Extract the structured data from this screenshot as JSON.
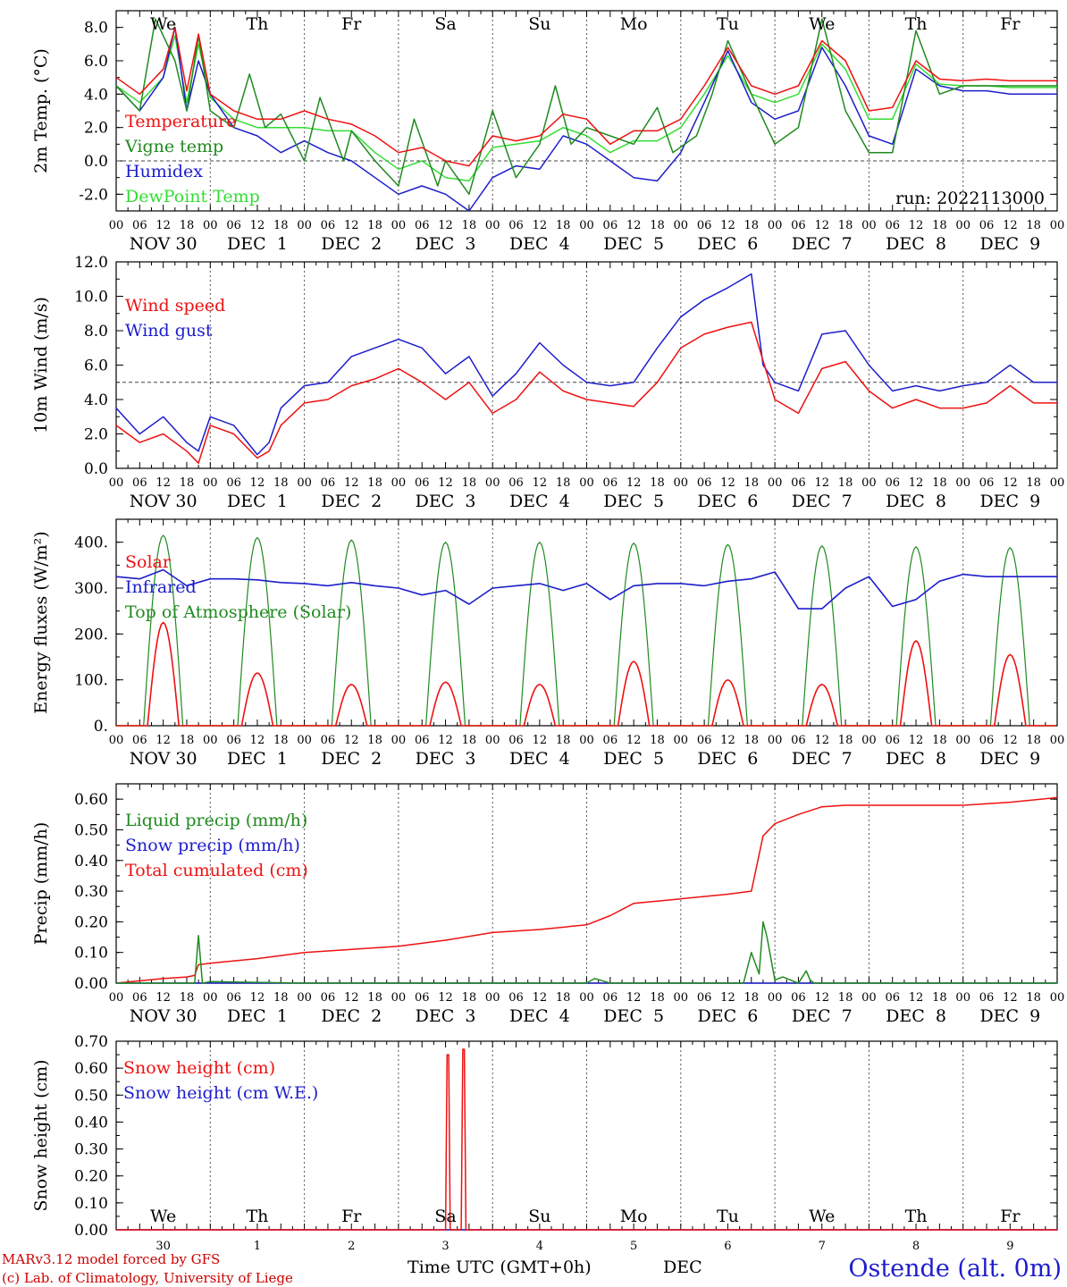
{
  "footer": {
    "model": "MARv3.12 model forced by GFS",
    "lab": "(c) Lab. of Climatology, University of Liege",
    "time_label": "Time UTC (GMT+0h)",
    "month_label": "DEC",
    "station": "Ostende (alt. 0m)"
  },
  "weekdays": [
    "We",
    "Th",
    "Fr",
    "Sa",
    "Su",
    "Mo",
    "Tu",
    "We",
    "Th",
    "Fr"
  ],
  "weekend_color": "#e00000",
  "weekend_index": [
    3,
    4
  ],
  "date_labels": [
    "NOV 30",
    "DEC  1",
    "DEC  2",
    "DEC  3",
    "DEC  4",
    "DEC  5",
    "DEC  6",
    "DEC  7",
    "DEC  8",
    "DEC  9"
  ],
  "day_numbers": [
    "30",
    "1",
    "2",
    "3",
    "4",
    "5",
    "6",
    "7",
    "8",
    "9"
  ],
  "hour_labels": [
    "00",
    "06",
    "12",
    "18"
  ],
  "colors": {
    "red": "#ee1111",
    "green": "#1f8a1f",
    "blue": "#1d1dcc",
    "lightgreen": "#33dd33"
  },
  "chart_data": [
    {
      "type": "line",
      "ylabel": "2m Temp. (°C)",
      "ylim": [
        -3.0,
        9.0
      ],
      "yticks": [
        "-2.0",
        "0.0",
        "2.0",
        "4.0",
        "6.0",
        "8.0"
      ],
      "hline": 0.0,
      "run_label": "run: 2022113000",
      "x_unit": "hours since NOV 30 00 UTC",
      "series": [
        {
          "name": "Temperature",
          "color": "red",
          "x": [
            0,
            6,
            12,
            15,
            18,
            21,
            24,
            30,
            36,
            42,
            48,
            54,
            60,
            66,
            72,
            78,
            84,
            90,
            96,
            102,
            108,
            114,
            120,
            126,
            132,
            138,
            144,
            150,
            156,
            162,
            168,
            174,
            180,
            186,
            192,
            198,
            204,
            210,
            216,
            222,
            228,
            234,
            240
          ],
          "y": [
            5.0,
            4.0,
            5.5,
            8.0,
            4.2,
            7.6,
            4.0,
            3.0,
            2.5,
            2.5,
            3.0,
            2.5,
            2.2,
            1.5,
            0.5,
            0.8,
            0.0,
            -0.3,
            1.5,
            1.2,
            1.5,
            2.8,
            2.5,
            1.0,
            1.8,
            1.8,
            2.5,
            4.5,
            6.8,
            4.5,
            4.0,
            4.5,
            7.2,
            6.0,
            3.0,
            3.2,
            6.0,
            4.9,
            4.8,
            4.9,
            4.8,
            4.8,
            4.8
          ]
        },
        {
          "name": "Vigne temp",
          "color": "green",
          "x": [
            0,
            6,
            10,
            15,
            18,
            21,
            24,
            30,
            34,
            38,
            42,
            48,
            52,
            58,
            60,
            66,
            72,
            76,
            82,
            84,
            90,
            96,
            102,
            108,
            112,
            116,
            120,
            126,
            132,
            138,
            142,
            148,
            152,
            156,
            162,
            168,
            174,
            180,
            186,
            192,
            198,
            204,
            210,
            216,
            222,
            228,
            234,
            240
          ],
          "y": [
            4.5,
            3.0,
            8.5,
            6.0,
            3.0,
            7.5,
            3.0,
            2.0,
            5.2,
            2.0,
            2.8,
            0.0,
            3.8,
            0.0,
            1.8,
            0.0,
            -1.5,
            2.5,
            -1.5,
            0.0,
            -2.0,
            3.0,
            -1.0,
            1.0,
            4.5,
            1.0,
            2.0,
            1.5,
            1.0,
            3.2,
            0.5,
            1.5,
            4.0,
            7.2,
            4.0,
            1.0,
            2.0,
            8.5,
            3.0,
            0.5,
            0.5,
            7.8,
            4.0,
            4.5,
            4.5,
            4.5,
            4.5,
            4.5
          ]
        },
        {
          "name": "Humidex",
          "color": "blue",
          "x": [
            0,
            6,
            12,
            15,
            18,
            21,
            24,
            30,
            36,
            42,
            48,
            54,
            60,
            66,
            72,
            78,
            84,
            90,
            96,
            102,
            108,
            114,
            120,
            126,
            132,
            138,
            144,
            150,
            156,
            162,
            168,
            174,
            180,
            186,
            192,
            198,
            204,
            210,
            216,
            222,
            228,
            234,
            240
          ],
          "y": [
            4.5,
            3.0,
            5.0,
            8.0,
            3.0,
            6.0,
            4.0,
            2.0,
            1.5,
            0.5,
            1.2,
            0.5,
            0.0,
            -1.0,
            -2.0,
            -1.5,
            -2.0,
            -3.0,
            -1.0,
            -0.3,
            -0.5,
            1.5,
            1.0,
            0.0,
            -1.0,
            -1.2,
            0.5,
            3.5,
            6.6,
            3.5,
            2.5,
            3.0,
            6.8,
            4.5,
            1.5,
            1.0,
            5.5,
            4.5,
            4.2,
            4.2,
            4.0,
            4.0,
            4.0
          ]
        },
        {
          "name": "DewPoint Temp",
          "color": "lightgreen",
          "x": [
            0,
            6,
            12,
            15,
            18,
            21,
            24,
            30,
            36,
            42,
            48,
            54,
            60,
            66,
            72,
            78,
            84,
            90,
            96,
            102,
            108,
            114,
            120,
            126,
            132,
            138,
            144,
            150,
            156,
            162,
            168,
            174,
            180,
            186,
            192,
            198,
            204,
            210,
            216,
            222,
            228,
            234,
            240
          ],
          "y": [
            4.5,
            3.5,
            5.0,
            7.5,
            3.5,
            7.0,
            3.8,
            2.5,
            2.0,
            2.0,
            2.0,
            1.8,
            1.8,
            0.5,
            -0.5,
            0.0,
            -1.0,
            -1.2,
            0.8,
            1.0,
            1.2,
            2.0,
            1.5,
            0.5,
            1.2,
            1.2,
            2.0,
            4.0,
            6.3,
            4.0,
            3.5,
            4.0,
            7.0,
            5.5,
            2.5,
            2.5,
            5.8,
            4.6,
            4.5,
            4.5,
            4.4,
            4.4,
            4.4
          ]
        }
      ],
      "legend": [
        "Temperature",
        "Vigne temp",
        "Humidex",
        "DewPoint Temp"
      ]
    },
    {
      "type": "line",
      "ylabel": "10m Wind (m/s)",
      "ylim": [
        0.0,
        12.0
      ],
      "yticks": [
        "0.0",
        "2.0",
        "4.0",
        "6.0",
        "8.0",
        "10.0",
        "12.0"
      ],
      "hline": 5.0,
      "series": [
        {
          "name": "Wind speed",
          "color": "red",
          "x": [
            0,
            6,
            12,
            18,
            21,
            24,
            30,
            36,
            39,
            42,
            48,
            54,
            60,
            66,
            72,
            78,
            84,
            90,
            96,
            102,
            108,
            114,
            120,
            126,
            132,
            138,
            144,
            150,
            156,
            162,
            168,
            174,
            180,
            186,
            192,
            198,
            204,
            210,
            216,
            222,
            228,
            234,
            240
          ],
          "y": [
            2.5,
            1.5,
            2.0,
            1.0,
            0.3,
            2.5,
            2.0,
            0.6,
            1.0,
            2.5,
            3.8,
            4.0,
            4.8,
            5.2,
            5.8,
            5.0,
            4.0,
            5.0,
            3.2,
            4.0,
            5.6,
            4.5,
            4.0,
            3.8,
            3.6,
            5.0,
            7.0,
            7.8,
            8.2,
            8.5,
            4.0,
            3.2,
            5.8,
            6.2,
            4.5,
            3.5,
            4.0,
            3.5,
            3.5,
            3.8,
            4.8,
            3.8,
            3.8
          ]
        },
        {
          "name": "Wind gust",
          "color": "blue",
          "x": [
            0,
            6,
            12,
            18,
            21,
            24,
            30,
            36,
            39,
            42,
            48,
            54,
            60,
            66,
            72,
            78,
            84,
            90,
            96,
            102,
            108,
            114,
            120,
            126,
            132,
            138,
            144,
            150,
            156,
            162,
            165,
            168,
            174,
            180,
            186,
            192,
            198,
            204,
            210,
            216,
            222,
            228,
            234,
            240
          ],
          "y": [
            3.5,
            2.0,
            3.0,
            1.5,
            1.0,
            3.0,
            2.5,
            0.8,
            1.5,
            3.5,
            4.8,
            5.0,
            6.5,
            7.0,
            7.5,
            7.0,
            5.5,
            6.5,
            4.2,
            5.5,
            7.3,
            6.0,
            5.0,
            4.8,
            5.0,
            7.0,
            8.8,
            9.8,
            10.5,
            11.3,
            6.0,
            5.0,
            4.5,
            7.8,
            8.0,
            6.0,
            4.5,
            4.8,
            4.5,
            4.8,
            5.0,
            6.0,
            5.0,
            5.0
          ]
        }
      ],
      "legend": [
        "Wind speed",
        "Wind gust"
      ]
    },
    {
      "type": "line",
      "ylabel": "Energy fluxes (W/m²)",
      "ylim": [
        0,
        450
      ],
      "yticks": [
        "0.",
        "100.",
        "200.",
        "300.",
        "400."
      ],
      "series": [
        {
          "name": "Solar",
          "color": "red",
          "peaks": [
            225,
            115,
            90,
            95,
            90,
            140,
            100,
            90,
            185,
            155
          ]
        },
        {
          "name": "Infrared",
          "color": "blue",
          "x": [
            0,
            6,
            12,
            18,
            24,
            30,
            36,
            42,
            48,
            54,
            60,
            66,
            72,
            78,
            84,
            90,
            96,
            102,
            108,
            114,
            120,
            126,
            132,
            138,
            144,
            150,
            156,
            162,
            168,
            174,
            180,
            186,
            192,
            198,
            204,
            210,
            216,
            222,
            228,
            234,
            240
          ],
          "y": [
            325,
            320,
            340,
            305,
            320,
            320,
            318,
            312,
            310,
            305,
            312,
            305,
            300,
            285,
            295,
            265,
            300,
            305,
            310,
            295,
            310,
            275,
            305,
            310,
            310,
            305,
            315,
            320,
            335,
            255,
            255,
            300,
            325,
            260,
            275,
            315,
            330,
            325,
            325,
            325,
            325
          ]
        },
        {
          "name": "Top of Atmosphere (Solar)",
          "color": "green",
          "peaks": [
            415,
            410,
            405,
            400,
            400,
            398,
            395,
            392,
            390,
            388
          ]
        }
      ],
      "legend": [
        "Solar",
        "Infrared",
        "Top of Atmosphere (Solar)"
      ]
    },
    {
      "type": "line",
      "ylabel": "Precip (mm/h)",
      "ylim": [
        0.0,
        0.65
      ],
      "yticks": [
        "0.00",
        "0.10",
        "0.20",
        "0.30",
        "0.40",
        "0.50",
        "0.60"
      ],
      "series": [
        {
          "name": "Liquid precip (mm/h)",
          "color": "green",
          "x": [
            0,
            18,
            20,
            21,
            22,
            24,
            48,
            120,
            122,
            124,
            126,
            160,
            162,
            164,
            165,
            166,
            168,
            170,
            174,
            176,
            177,
            178,
            180,
            240
          ],
          "y": [
            0,
            0,
            0,
            0.155,
            0,
            0.005,
            0,
            0,
            0.015,
            0.008,
            0,
            0,
            0.1,
            0.03,
            0.2,
            0.15,
            0.01,
            0.02,
            0,
            0.04,
            0.01,
            0,
            0,
            0
          ]
        },
        {
          "name": "Snow precip (mm/h)",
          "color": "blue",
          "x": [
            0,
            240
          ],
          "y": [
            0,
            0
          ]
        },
        {
          "name": "Total cumulated (cm)",
          "color": "red",
          "x": [
            0,
            12,
            18,
            20,
            21,
            24,
            36,
            48,
            60,
            72,
            84,
            96,
            108,
            120,
            126,
            132,
            144,
            156,
            162,
            165,
            168,
            174,
            180,
            186,
            192,
            204,
            216,
            228,
            240
          ],
          "y": [
            0.0,
            0.015,
            0.02,
            0.025,
            0.06,
            0.065,
            0.08,
            0.1,
            0.11,
            0.12,
            0.14,
            0.165,
            0.175,
            0.19,
            0.22,
            0.26,
            0.275,
            0.29,
            0.3,
            0.48,
            0.52,
            0.55,
            0.575,
            0.58,
            0.58,
            0.58,
            0.58,
            0.59,
            0.605
          ]
        }
      ],
      "legend": [
        "Liquid precip (mm/h)",
        "Snow precip (mm/h)",
        "Total cumulated (cm)"
      ]
    },
    {
      "type": "line",
      "ylabel": "Snow height (cm)",
      "ylim": [
        0.0,
        0.7
      ],
      "yticks": [
        "0.00",
        "0.10",
        "0.20",
        "0.30",
        "0.40",
        "0.50",
        "0.60",
        "0.70"
      ],
      "series": [
        {
          "name": "Snow height (cm)",
          "color": "red",
          "x": [
            0,
            84,
            84.4,
            84.8,
            85.2,
            88,
            88.4,
            88.8,
            89.2,
            240
          ],
          "y": [
            0,
            0,
            0.65,
            0.65,
            0,
            0,
            0.67,
            0.67,
            0,
            0
          ]
        },
        {
          "name": "Snow height (cm W.E.)",
          "color": "blue",
          "x": [
            0,
            240
          ],
          "y": [
            0,
            0
          ]
        }
      ],
      "legend": [
        "Snow height (cm)",
        "Snow height (cm W.E.)"
      ]
    }
  ]
}
